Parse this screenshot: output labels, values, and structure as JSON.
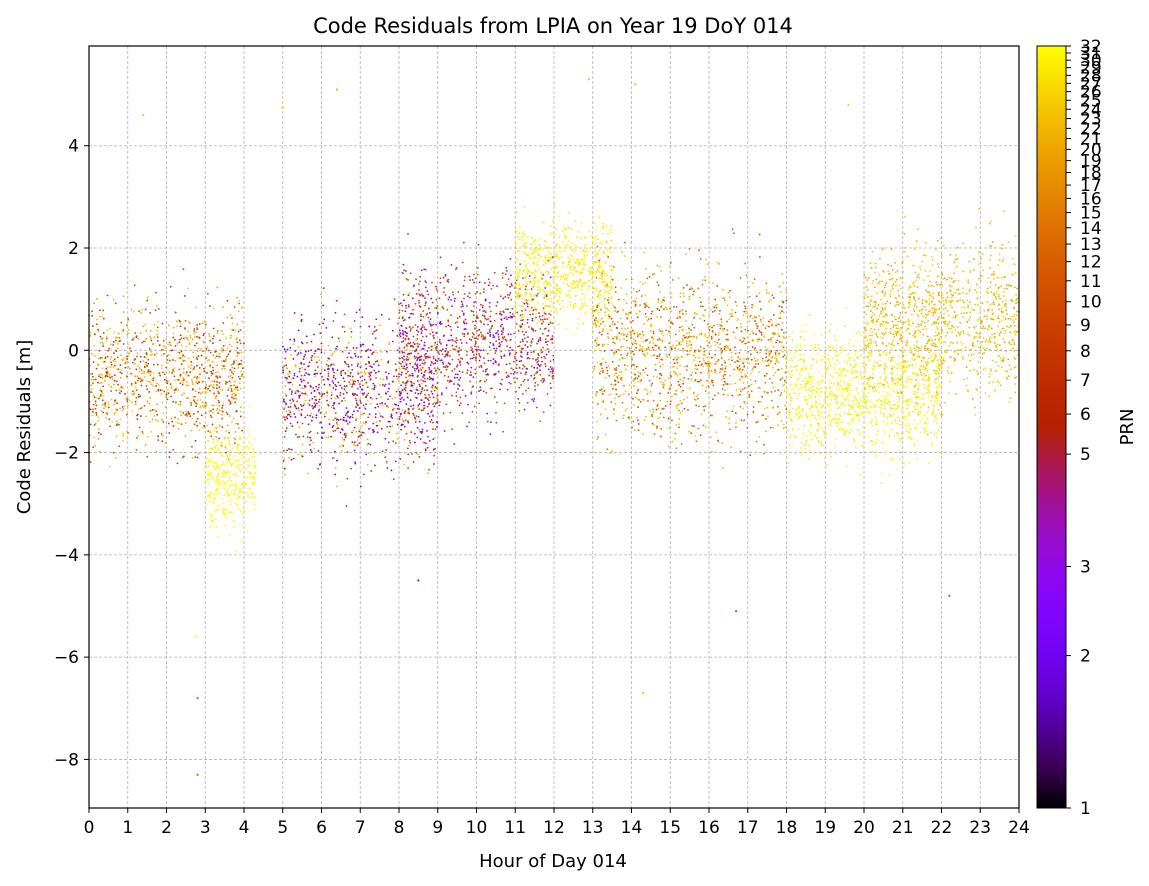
{
  "chart_data": {
    "type": "scatter",
    "title": "Code Residuals from LPIA on Year 19 DoY 014",
    "xlabel": "Hour of Day 014",
    "ylabel": "Code Residuals [m]",
    "xlim": [
      0,
      24
    ],
    "ylim": [
      -8.95,
      5.95
    ],
    "x_ticks": [
      0,
      1,
      2,
      3,
      4,
      5,
      6,
      7,
      8,
      9,
      10,
      11,
      12,
      13,
      14,
      15,
      16,
      17,
      18,
      19,
      20,
      21,
      22,
      23,
      24
    ],
    "y_ticks": [
      -8,
      -6,
      -4,
      -2,
      0,
      2,
      4
    ],
    "y_tick_labels": [
      "−8",
      "−6",
      "−4",
      "−2",
      "0",
      "2",
      "4"
    ],
    "grid": true,
    "colorbar": {
      "label": "PRN",
      "colormap": "gnuplot",
      "range": [
        1,
        32
      ],
      "ticks": [
        1,
        2,
        3,
        5,
        6,
        7,
        8,
        9,
        10,
        11,
        12,
        13,
        14,
        15,
        16,
        17,
        18,
        19,
        20,
        21,
        22,
        23,
        24,
        25,
        26,
        27,
        28,
        29,
        30,
        31,
        32
      ]
    },
    "series_summary": [
      {
        "hour_range": [
          0,
          4
        ],
        "prn_examples": [
          8,
          10,
          20,
          24
        ],
        "residual_center": -0.5,
        "residual_spread": 1.2
      },
      {
        "hour_range": [
          3,
          4.3
        ],
        "prn_examples": [
          31,
          32
        ],
        "residual_center": -2.5,
        "residual_spread": 0.8
      },
      {
        "hour_range": [
          5,
          9
        ],
        "prn_examples": [
          2,
          3,
          6,
          9,
          22
        ],
        "residual_center": -0.8,
        "residual_spread": 1.2
      },
      {
        "hour_range": [
          8,
          12
        ],
        "prn_examples": [
          3,
          9,
          10
        ],
        "residual_center": 0.2,
        "residual_spread": 1.2
      },
      {
        "hour_range": [
          11,
          13.5
        ],
        "prn_examples": [
          28,
          30,
          31
        ],
        "residual_center": 1.5,
        "residual_spread": 0.8
      },
      {
        "hour_range": [
          13,
          18
        ],
        "prn_examples": [
          10,
          14,
          22,
          24
        ],
        "residual_center": 0.0,
        "residual_spread": 1.4
      },
      {
        "hour_range": [
          18,
          22
        ],
        "prn_examples": [
          28,
          30,
          31,
          32
        ],
        "residual_center": -0.8,
        "residual_spread": 1.0
      },
      {
        "hour_range": [
          20,
          24
        ],
        "prn_examples": [
          20,
          22,
          24,
          26
        ],
        "residual_center": 0.6,
        "residual_spread": 1.2
      }
    ],
    "outliers": [
      {
        "x": 2.8,
        "y": -8.3,
        "prn": 12
      },
      {
        "x": 2.8,
        "y": -6.8,
        "prn": 12
      },
      {
        "x": 2.75,
        "y": -5.6,
        "prn": 31
      },
      {
        "x": 14.3,
        "y": -6.7,
        "prn": 24
      },
      {
        "x": 12.9,
        "y": 5.3,
        "prn": 24
      },
      {
        "x": 14.1,
        "y": 5.2,
        "prn": 24
      },
      {
        "x": 6.4,
        "y": 5.1,
        "prn": 22
      },
      {
        "x": 5.0,
        "y": 4.75,
        "prn": 24
      },
      {
        "x": 19.6,
        "y": 4.8,
        "prn": 26
      },
      {
        "x": 1.4,
        "y": 4.6,
        "prn": 24
      },
      {
        "x": 8.5,
        "y": -4.5,
        "prn": 6
      },
      {
        "x": 22.2,
        "y": -4.8,
        "prn": 12
      },
      {
        "x": 16.7,
        "y": -5.1,
        "prn": 10
      }
    ]
  }
}
